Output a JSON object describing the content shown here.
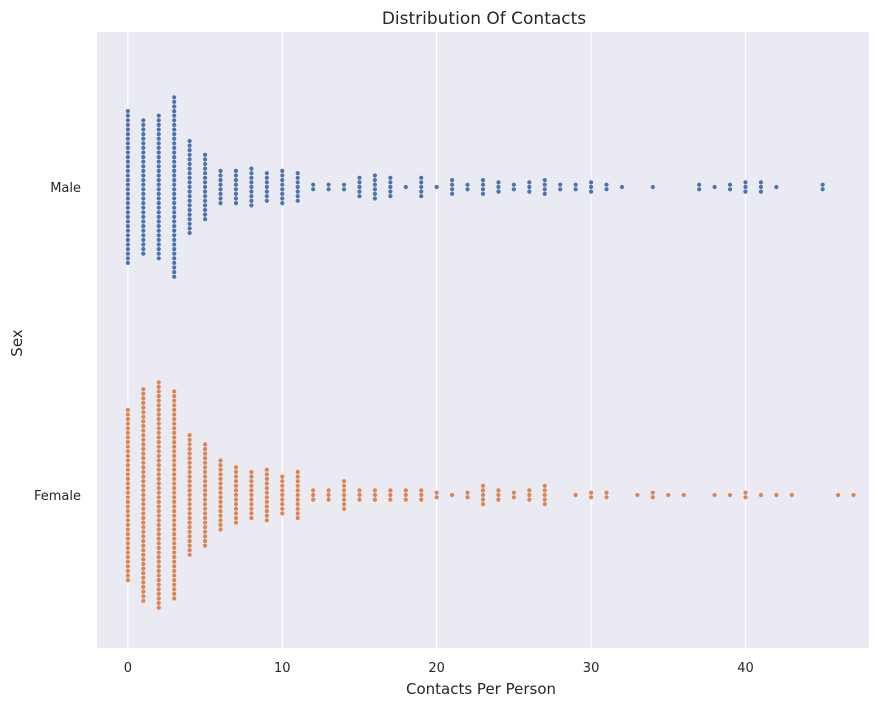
{
  "chart_data": {
    "type": "scatter",
    "subtype": "swarm",
    "title": "Distribution Of Contacts",
    "xlabel": "Contacts Per Person",
    "ylabel": "Sex",
    "xlim": [
      -2,
      48
    ],
    "x_ticks": [
      0,
      10,
      20,
      30,
      40
    ],
    "categories": [
      "Male",
      "Female"
    ],
    "grid": true,
    "legend": "none",
    "background": "#eaeaf2",
    "series": [
      {
        "name": "Male",
        "color": "#4c72b0",
        "counts": [
          [
            0,
            34
          ],
          [
            1,
            30
          ],
          [
            2,
            32
          ],
          [
            3,
            40
          ],
          [
            4,
            21
          ],
          [
            5,
            15
          ],
          [
            6,
            8
          ],
          [
            7,
            8
          ],
          [
            8,
            9
          ],
          [
            9,
            7
          ],
          [
            10,
            8
          ],
          [
            11,
            7
          ],
          [
            12,
            2
          ],
          [
            13,
            2
          ],
          [
            14,
            2
          ],
          [
            15,
            5
          ],
          [
            16,
            6
          ],
          [
            17,
            5
          ],
          [
            18,
            1
          ],
          [
            19,
            5
          ],
          [
            20,
            1
          ],
          [
            21,
            4
          ],
          [
            22,
            2
          ],
          [
            23,
            4
          ],
          [
            24,
            3
          ],
          [
            25,
            2
          ],
          [
            26,
            3
          ],
          [
            27,
            4
          ],
          [
            28,
            2
          ],
          [
            29,
            2
          ],
          [
            30,
            3
          ],
          [
            31,
            2
          ],
          [
            32,
            1
          ],
          [
            34,
            1
          ],
          [
            37,
            2
          ],
          [
            38,
            1
          ],
          [
            39,
            2
          ],
          [
            40,
            3
          ],
          [
            41,
            3
          ],
          [
            42,
            1
          ],
          [
            45,
            2
          ]
        ]
      },
      {
        "name": "Female",
        "color": "#dd8452",
        "counts": [
          [
            0,
            38
          ],
          [
            1,
            47
          ],
          [
            2,
            50
          ],
          [
            3,
            46
          ],
          [
            4,
            27
          ],
          [
            5,
            23
          ],
          [
            6,
            16
          ],
          [
            7,
            13
          ],
          [
            8,
            11
          ],
          [
            9,
            12
          ],
          [
            10,
            9
          ],
          [
            11,
            11
          ],
          [
            12,
            3
          ],
          [
            13,
            3
          ],
          [
            14,
            7
          ],
          [
            15,
            3
          ],
          [
            16,
            3
          ],
          [
            17,
            3
          ],
          [
            18,
            3
          ],
          [
            19,
            3
          ],
          [
            20,
            2
          ],
          [
            21,
            1
          ],
          [
            22,
            2
          ],
          [
            23,
            5
          ],
          [
            24,
            3
          ],
          [
            25,
            2
          ],
          [
            26,
            3
          ],
          [
            27,
            5
          ],
          [
            29,
            1
          ],
          [
            30,
            2
          ],
          [
            31,
            2
          ],
          [
            33,
            1
          ],
          [
            34,
            2
          ],
          [
            35,
            1
          ],
          [
            36,
            1
          ],
          [
            38,
            1
          ],
          [
            39,
            1
          ],
          [
            40,
            2
          ],
          [
            41,
            1
          ],
          [
            42,
            1
          ],
          [
            43,
            1
          ],
          [
            46,
            1
          ],
          [
            47,
            1
          ]
        ]
      }
    ]
  }
}
